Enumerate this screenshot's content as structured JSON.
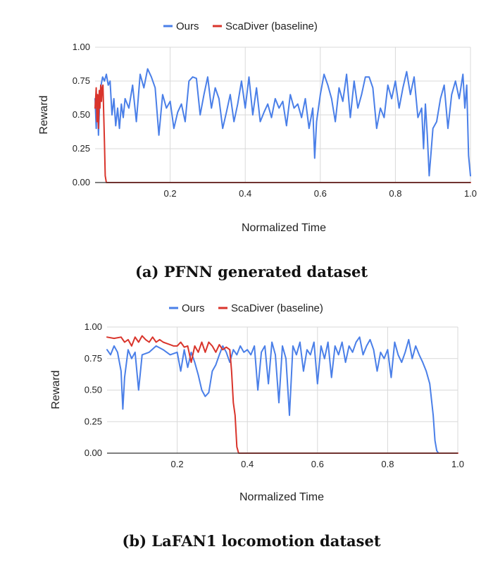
{
  "chart_data": [
    {
      "type": "line",
      "caption": "(a) PFNN generated dataset",
      "xlabel": "Normalized Time",
      "ylabel": "Reward",
      "xlim": [
        0,
        1.0
      ],
      "ylim": [
        0,
        1.0
      ],
      "xticks": [
        "0.2",
        "0.4",
        "0.6",
        "0.8",
        "1.0"
      ],
      "yticks": [
        "0.00",
        "0.25",
        "0.50",
        "0.75",
        "1.00"
      ],
      "legend": [
        "Ours",
        "ScaDiver (baseline)"
      ],
      "series": [
        {
          "name": "Ours",
          "color": "#4a7fe8",
          "x": [
            0.0,
            0.003,
            0.006,
            0.009,
            0.012,
            0.016,
            0.02,
            0.025,
            0.03,
            0.035,
            0.04,
            0.045,
            0.05,
            0.055,
            0.06,
            0.065,
            0.07,
            0.075,
            0.08,
            0.09,
            0.1,
            0.11,
            0.12,
            0.13,
            0.14,
            0.15,
            0.16,
            0.17,
            0.18,
            0.19,
            0.2,
            0.21,
            0.22,
            0.23,
            0.24,
            0.25,
            0.26,
            0.27,
            0.28,
            0.29,
            0.3,
            0.31,
            0.32,
            0.33,
            0.34,
            0.35,
            0.36,
            0.37,
            0.38,
            0.39,
            0.4,
            0.41,
            0.42,
            0.43,
            0.44,
            0.45,
            0.46,
            0.47,
            0.48,
            0.49,
            0.5,
            0.51,
            0.52,
            0.53,
            0.54,
            0.55,
            0.56,
            0.57,
            0.58,
            0.585,
            0.59,
            0.6,
            0.61,
            0.62,
            0.63,
            0.64,
            0.65,
            0.66,
            0.67,
            0.68,
            0.69,
            0.7,
            0.71,
            0.72,
            0.73,
            0.74,
            0.75,
            0.76,
            0.77,
            0.78,
            0.79,
            0.8,
            0.81,
            0.82,
            0.83,
            0.84,
            0.85,
            0.86,
            0.87,
            0.875,
            0.88,
            0.885,
            0.89,
            0.895,
            0.9,
            0.91,
            0.92,
            0.93,
            0.94,
            0.95,
            0.96,
            0.97,
            0.98,
            0.985,
            0.99,
            0.995,
            1.0
          ],
          "y": [
            0.62,
            0.4,
            0.65,
            0.35,
            0.58,
            0.72,
            0.78,
            0.75,
            0.8,
            0.72,
            0.75,
            0.5,
            0.62,
            0.42,
            0.55,
            0.4,
            0.58,
            0.48,
            0.62,
            0.55,
            0.72,
            0.45,
            0.8,
            0.7,
            0.84,
            0.78,
            0.7,
            0.35,
            0.65,
            0.55,
            0.6,
            0.4,
            0.52,
            0.58,
            0.45,
            0.75,
            0.78,
            0.77,
            0.5,
            0.65,
            0.78,
            0.55,
            0.7,
            0.62,
            0.4,
            0.52,
            0.65,
            0.45,
            0.58,
            0.75,
            0.55,
            0.78,
            0.5,
            0.7,
            0.45,
            0.52,
            0.58,
            0.48,
            0.62,
            0.55,
            0.6,
            0.42,
            0.65,
            0.55,
            0.58,
            0.48,
            0.62,
            0.4,
            0.55,
            0.18,
            0.45,
            0.65,
            0.8,
            0.72,
            0.62,
            0.45,
            0.7,
            0.6,
            0.8,
            0.48,
            0.75,
            0.55,
            0.65,
            0.78,
            0.78,
            0.7,
            0.4,
            0.55,
            0.48,
            0.72,
            0.62,
            0.75,
            0.55,
            0.7,
            0.82,
            0.65,
            0.78,
            0.48,
            0.55,
            0.25,
            0.58,
            0.35,
            0.05,
            0.22,
            0.4,
            0.45,
            0.62,
            0.72,
            0.4,
            0.65,
            0.75,
            0.62,
            0.8,
            0.55,
            0.72,
            0.2,
            0.05
          ]
        },
        {
          "name": "ScaDiver (baseline)",
          "color": "#d9342b",
          "x": [
            0.0,
            0.003,
            0.005,
            0.007,
            0.009,
            0.011,
            0.013,
            0.015,
            0.017,
            0.019,
            0.021,
            0.023,
            0.025,
            0.027,
            0.03,
            0.035,
            0.04,
            0.1,
            0.5,
            1.0
          ],
          "y": [
            0.55,
            0.7,
            0.45,
            0.65,
            0.4,
            0.68,
            0.55,
            0.72,
            0.6,
            0.7,
            0.72,
            0.5,
            0.3,
            0.05,
            0.0,
            0.0,
            0.0,
            0.0,
            0.0,
            0.0
          ]
        }
      ]
    },
    {
      "type": "line",
      "caption": "(b) LaFAN1 locomotion dataset",
      "xlabel": "Normalized Time",
      "ylabel": "Reward",
      "xlim": [
        0,
        1.0
      ],
      "ylim": [
        0,
        1.0
      ],
      "xticks": [
        "0.2",
        "0.4",
        "0.6",
        "0.8",
        "1.0"
      ],
      "yticks": [
        "0.00",
        "0.25",
        "0.50",
        "0.75",
        "1.00"
      ],
      "legend": [
        "Ours",
        "ScaDiver (baseline)"
      ],
      "series": [
        {
          "name": "Ours",
          "color": "#4a7fe8",
          "x": [
            0.0,
            0.01,
            0.02,
            0.03,
            0.04,
            0.045,
            0.05,
            0.06,
            0.07,
            0.08,
            0.09,
            0.1,
            0.12,
            0.14,
            0.16,
            0.18,
            0.2,
            0.21,
            0.22,
            0.23,
            0.24,
            0.25,
            0.26,
            0.27,
            0.28,
            0.29,
            0.3,
            0.31,
            0.32,
            0.33,
            0.34,
            0.35,
            0.36,
            0.37,
            0.38,
            0.39,
            0.4,
            0.41,
            0.42,
            0.43,
            0.44,
            0.45,
            0.46,
            0.47,
            0.48,
            0.49,
            0.5,
            0.51,
            0.52,
            0.53,
            0.54,
            0.55,
            0.56,
            0.57,
            0.58,
            0.59,
            0.6,
            0.61,
            0.62,
            0.63,
            0.64,
            0.65,
            0.66,
            0.67,
            0.68,
            0.69,
            0.7,
            0.71,
            0.72,
            0.73,
            0.74,
            0.75,
            0.76,
            0.77,
            0.78,
            0.79,
            0.8,
            0.81,
            0.82,
            0.83,
            0.84,
            0.85,
            0.86,
            0.87,
            0.88,
            0.89,
            0.9,
            0.91,
            0.92,
            0.93,
            0.935,
            0.94,
            0.945
          ],
          "y": [
            0.82,
            0.78,
            0.85,
            0.8,
            0.65,
            0.35,
            0.6,
            0.82,
            0.75,
            0.8,
            0.5,
            0.78,
            0.8,
            0.85,
            0.82,
            0.78,
            0.8,
            0.65,
            0.82,
            0.68,
            0.8,
            0.72,
            0.62,
            0.5,
            0.45,
            0.48,
            0.65,
            0.7,
            0.78,
            0.85,
            0.8,
            0.72,
            0.82,
            0.78,
            0.85,
            0.8,
            0.82,
            0.78,
            0.85,
            0.5,
            0.8,
            0.85,
            0.55,
            0.88,
            0.78,
            0.4,
            0.85,
            0.75,
            0.3,
            0.85,
            0.78,
            0.88,
            0.65,
            0.82,
            0.78,
            0.88,
            0.55,
            0.85,
            0.75,
            0.88,
            0.6,
            0.85,
            0.78,
            0.88,
            0.72,
            0.85,
            0.8,
            0.88,
            0.92,
            0.78,
            0.85,
            0.9,
            0.82,
            0.65,
            0.8,
            0.75,
            0.82,
            0.6,
            0.88,
            0.78,
            0.72,
            0.8,
            0.9,
            0.75,
            0.85,
            0.78,
            0.72,
            0.65,
            0.55,
            0.3,
            0.1,
            0.02,
            0.0
          ]
        },
        {
          "name": "ScaDiver (baseline)",
          "color": "#d9342b",
          "x": [
            0.0,
            0.02,
            0.04,
            0.05,
            0.06,
            0.07,
            0.08,
            0.09,
            0.1,
            0.11,
            0.12,
            0.13,
            0.14,
            0.15,
            0.16,
            0.17,
            0.18,
            0.19,
            0.2,
            0.21,
            0.22,
            0.23,
            0.24,
            0.25,
            0.26,
            0.27,
            0.28,
            0.29,
            0.3,
            0.31,
            0.32,
            0.33,
            0.34,
            0.35,
            0.355,
            0.36,
            0.365,
            0.37,
            0.375,
            0.38,
            0.4,
            0.6,
            0.8,
            1.0
          ],
          "y": [
            0.92,
            0.91,
            0.92,
            0.88,
            0.9,
            0.85,
            0.92,
            0.88,
            0.93,
            0.9,
            0.88,
            0.92,
            0.88,
            0.9,
            0.88,
            0.87,
            0.86,
            0.85,
            0.85,
            0.88,
            0.84,
            0.85,
            0.72,
            0.85,
            0.8,
            0.88,
            0.8,
            0.88,
            0.85,
            0.8,
            0.86,
            0.82,
            0.84,
            0.82,
            0.65,
            0.4,
            0.3,
            0.05,
            0.0,
            0.0,
            0.0,
            0.0,
            0.0,
            0.0
          ]
        }
      ]
    }
  ]
}
